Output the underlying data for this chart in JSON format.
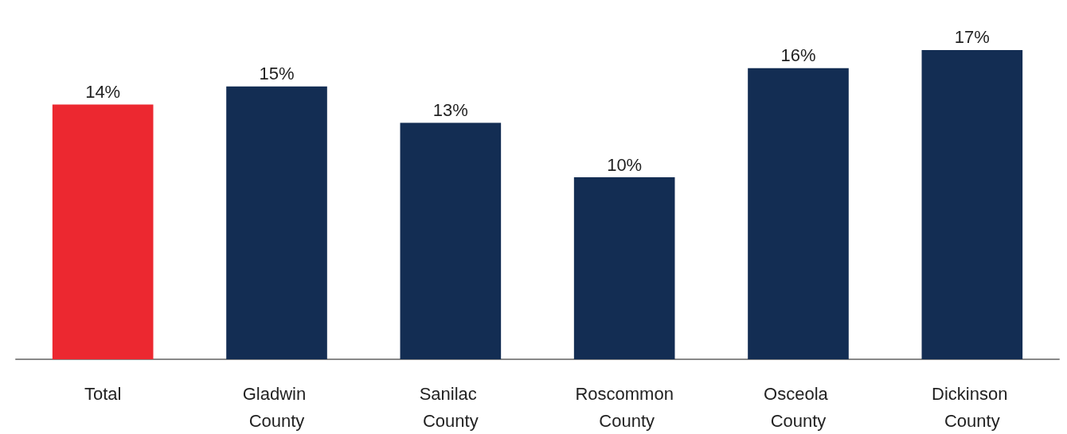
{
  "chart_data": {
    "type": "bar",
    "categories": [
      "Total",
      "Gladwin County",
      "Sanilac County",
      "Roscommon County",
      "Osceola County",
      "Dickinson County"
    ],
    "values": [
      14,
      15,
      13,
      10,
      16,
      17
    ],
    "colors": [
      "#ec2830",
      "#132d53",
      "#132d53",
      "#132d53",
      "#132d53",
      "#132d53"
    ],
    "value_labels": [
      "14%",
      "15%",
      "13%",
      "10%",
      "16%",
      "17%"
    ],
    "tick_labels": "x"
  }
}
